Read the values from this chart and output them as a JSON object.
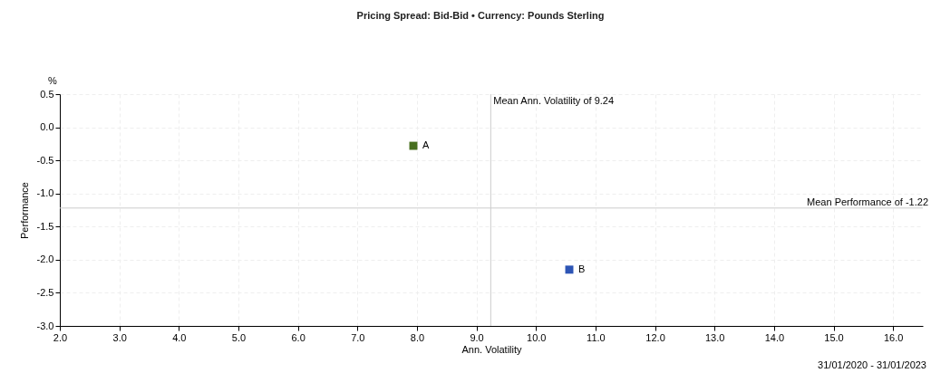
{
  "chart_data": {
    "type": "scatter",
    "title": "Pricing Spread: Bid-Bid • Currency: Pounds Sterling",
    "xlabel": "Ann. Volatility",
    "ylabel": "Performance",
    "annotations": [
      "%",
      "31/01/2020 - 31/01/2023"
    ],
    "series": [
      {
        "name": "A",
        "color": "#476f1f",
        "x": [
          7.94
        ],
        "values": [
          -0.28
        ]
      },
      {
        "name": "B",
        "color": "#2d55b5",
        "x": [
          10.56
        ],
        "values": [
          -2.15
        ]
      }
    ],
    "xlim": [
      2,
      16.5
    ],
    "xticks": [
      {
        "value": 2,
        "label": "2.0"
      },
      {
        "value": 3,
        "label": "3.0"
      },
      {
        "value": 4,
        "label": "4.0"
      },
      {
        "value": 5,
        "label": "5.0"
      },
      {
        "value": 6,
        "label": "6.0"
      },
      {
        "value": 7,
        "label": "7.0"
      },
      {
        "value": 8,
        "label": "8.0"
      },
      {
        "value": 9,
        "label": "9.0"
      },
      {
        "value": 10,
        "label": "10.0"
      },
      {
        "value": 11,
        "label": "11.0"
      },
      {
        "value": 12,
        "label": "12.0"
      },
      {
        "value": 13,
        "label": "13.0"
      },
      {
        "value": 14,
        "label": "14.0"
      },
      {
        "value": 15,
        "label": "15.0"
      },
      {
        "value": 16,
        "label": "16.0"
      }
    ],
    "ylim": [
      -3,
      0.5
    ],
    "yticks": [
      {
        "value": -3,
        "label": "-3.0"
      },
      {
        "value": -2.5,
        "label": "-2.5"
      },
      {
        "value": -2,
        "label": "-2.0"
      },
      {
        "value": -1.5,
        "label": "-1.5"
      },
      {
        "value": -1,
        "label": "-1.0"
      },
      {
        "value": -0.5,
        "label": "-0.5"
      },
      {
        "value": 0,
        "label": "0.0"
      },
      {
        "value": 0.5,
        "label": "0.5"
      }
    ],
    "ref_lines": [
      {
        "axis": "x",
        "value": 9.24,
        "label": "Mean Ann. Volatility of 9.24",
        "color": "#cccccc"
      },
      {
        "axis": "y",
        "value": -1.22,
        "label": "Mean Performance of -1.22",
        "color": "#cccccc"
      }
    ],
    "grid": true,
    "marker": "square"
  }
}
